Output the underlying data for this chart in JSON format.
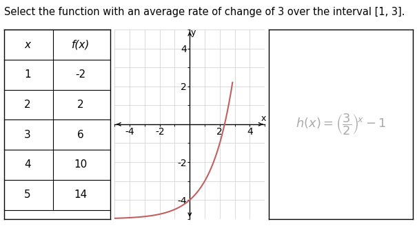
{
  "title": "Select the function with an average rate of change of 3 over the interval [1, 3].",
  "title_fontsize": 10.5,
  "background_color": "#ffffff",
  "table": {
    "x_values": [
      1,
      2,
      3,
      4,
      5
    ],
    "fx_values": [
      -2,
      2,
      6,
      10,
      14
    ],
    "col_headers": [
      "x",
      "f(x)"
    ]
  },
  "graph": {
    "xlim": [
      -5,
      5
    ],
    "ylim": [
      -5,
      5
    ],
    "xticks": [
      -4,
      -2,
      2,
      4
    ],
    "yticks": [
      -4,
      -2,
      2,
      4
    ],
    "curve_color": "#c06060",
    "curve_linewidth": 1.5
  },
  "formula": {
    "color": "#aaaaaa",
    "fontsize": 13
  },
  "panel_border_color": "#000000",
  "panel_bg": "#ffffff"
}
